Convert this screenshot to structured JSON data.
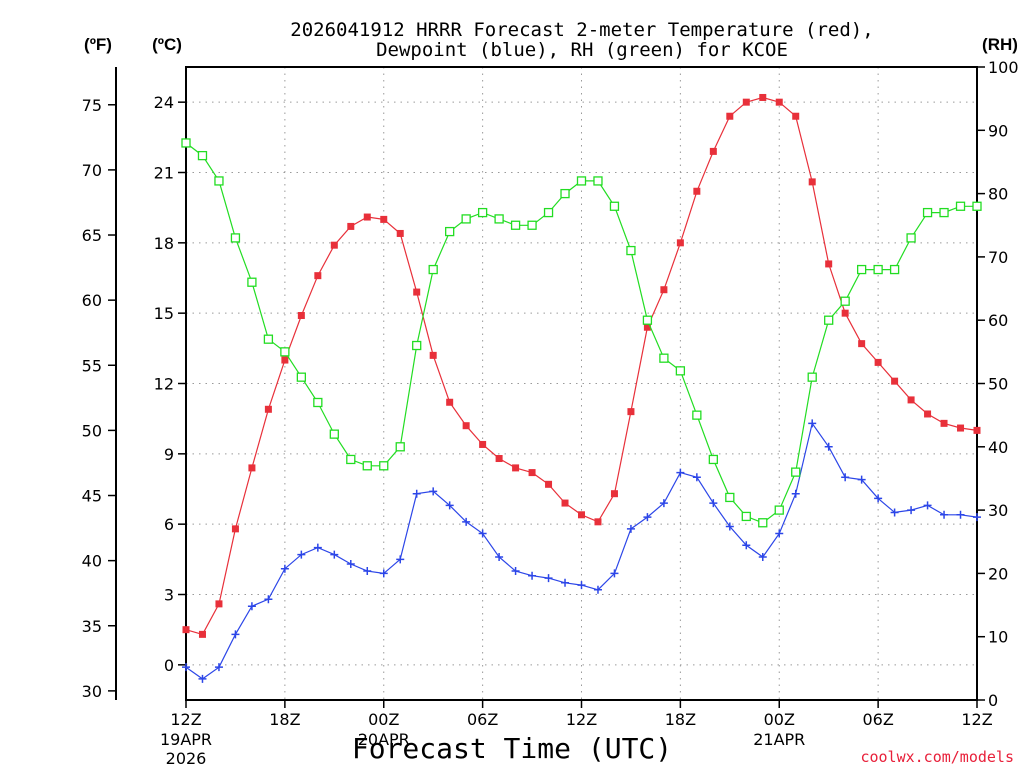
{
  "chart_data": {
    "type": "line",
    "title_lines": [
      "2026041912 HRRR Forecast 2-meter Temperature (red),",
      "Dewpoint (blue), RH (green) for KCOE"
    ],
    "xlabel": "Forecast Time (UTC)",
    "credit": "coolwx.com/models",
    "units": {
      "f": "(ºF)",
      "c": "(ºC)",
      "rh": "(RH)"
    },
    "x_ticks": [
      {
        "hour": 0,
        "label": "12Z",
        "sub": [
          "19APR",
          "2026"
        ]
      },
      {
        "hour": 6,
        "label": "18Z",
        "sub": []
      },
      {
        "hour": 12,
        "label": "00Z",
        "sub": [
          "20APR"
        ]
      },
      {
        "hour": 18,
        "label": "06Z",
        "sub": []
      },
      {
        "hour": 24,
        "label": "12Z",
        "sub": []
      },
      {
        "hour": 30,
        "label": "18Z",
        "sub": []
      },
      {
        "hour": 36,
        "label": "00Z",
        "sub": [
          "21APR"
        ]
      },
      {
        "hour": 42,
        "label": "06Z",
        "sub": []
      },
      {
        "hour": 48,
        "label": "12Z",
        "sub": []
      }
    ],
    "x_range": [
      0,
      48
    ],
    "celsius_axis": {
      "range": [
        -1.5,
        25.5
      ],
      "ticks": [
        0,
        3,
        6,
        9,
        12,
        15,
        18,
        21,
        24
      ]
    },
    "fahrenheit_ticks": [
      30,
      35,
      40,
      45,
      50,
      55,
      60,
      65,
      70,
      75
    ],
    "rh_axis": {
      "range": [
        0,
        100
      ],
      "ticks": [
        0,
        10,
        20,
        30,
        40,
        50,
        60,
        70,
        80,
        90,
        100
      ]
    },
    "series": [
      {
        "name": "2-meter Temperature",
        "unit": "C",
        "color": "#e8303a",
        "marker": "filled-square",
        "values": [
          1.5,
          1.3,
          2.6,
          5.8,
          8.4,
          10.9,
          13.0,
          14.9,
          16.6,
          17.9,
          18.7,
          19.1,
          19.0,
          18.4,
          15.9,
          13.2,
          11.2,
          10.2,
          9.4,
          8.8,
          8.4,
          8.2,
          7.7,
          6.9,
          6.4,
          6.1,
          7.3,
          10.8,
          14.4,
          16.0,
          18.0,
          20.2,
          21.9,
          23.4,
          24.0,
          24.2,
          24.0,
          23.4,
          20.6,
          17.1,
          15.0,
          13.7,
          12.9,
          12.1,
          11.3,
          10.7,
          10.3,
          10.1,
          10.0
        ]
      },
      {
        "name": "Dewpoint",
        "unit": "C",
        "color": "#2c46e8",
        "marker": "plus",
        "values": [
          -0.1,
          -0.6,
          -0.1,
          1.3,
          2.5,
          2.8,
          4.1,
          4.7,
          5.0,
          4.7,
          4.3,
          4.0,
          3.9,
          4.5,
          7.3,
          7.4,
          6.8,
          6.1,
          5.6,
          4.6,
          4.0,
          3.8,
          3.7,
          3.5,
          3.4,
          3.2,
          3.9,
          5.8,
          6.3,
          6.9,
          8.2,
          8.0,
          6.9,
          5.9,
          5.1,
          4.6,
          5.6,
          7.3,
          10.3,
          9.3,
          8.0,
          7.9,
          7.1,
          6.5,
          6.6,
          6.8,
          6.4,
          6.4,
          6.3
        ]
      },
      {
        "name": "RH",
        "unit": "%",
        "color": "#22dd22",
        "marker": "open-square",
        "values": [
          88,
          86,
          82,
          73,
          66,
          57,
          55,
          51,
          47,
          42,
          38,
          37,
          37,
          40,
          56,
          68,
          74,
          76,
          77,
          76,
          75,
          75,
          77,
          80,
          82,
          82,
          78,
          71,
          60,
          54,
          52,
          45,
          38,
          32,
          29,
          28,
          30,
          36,
          51,
          60,
          63,
          68,
          68,
          68,
          73,
          77,
          77,
          78,
          78
        ]
      }
    ]
  }
}
